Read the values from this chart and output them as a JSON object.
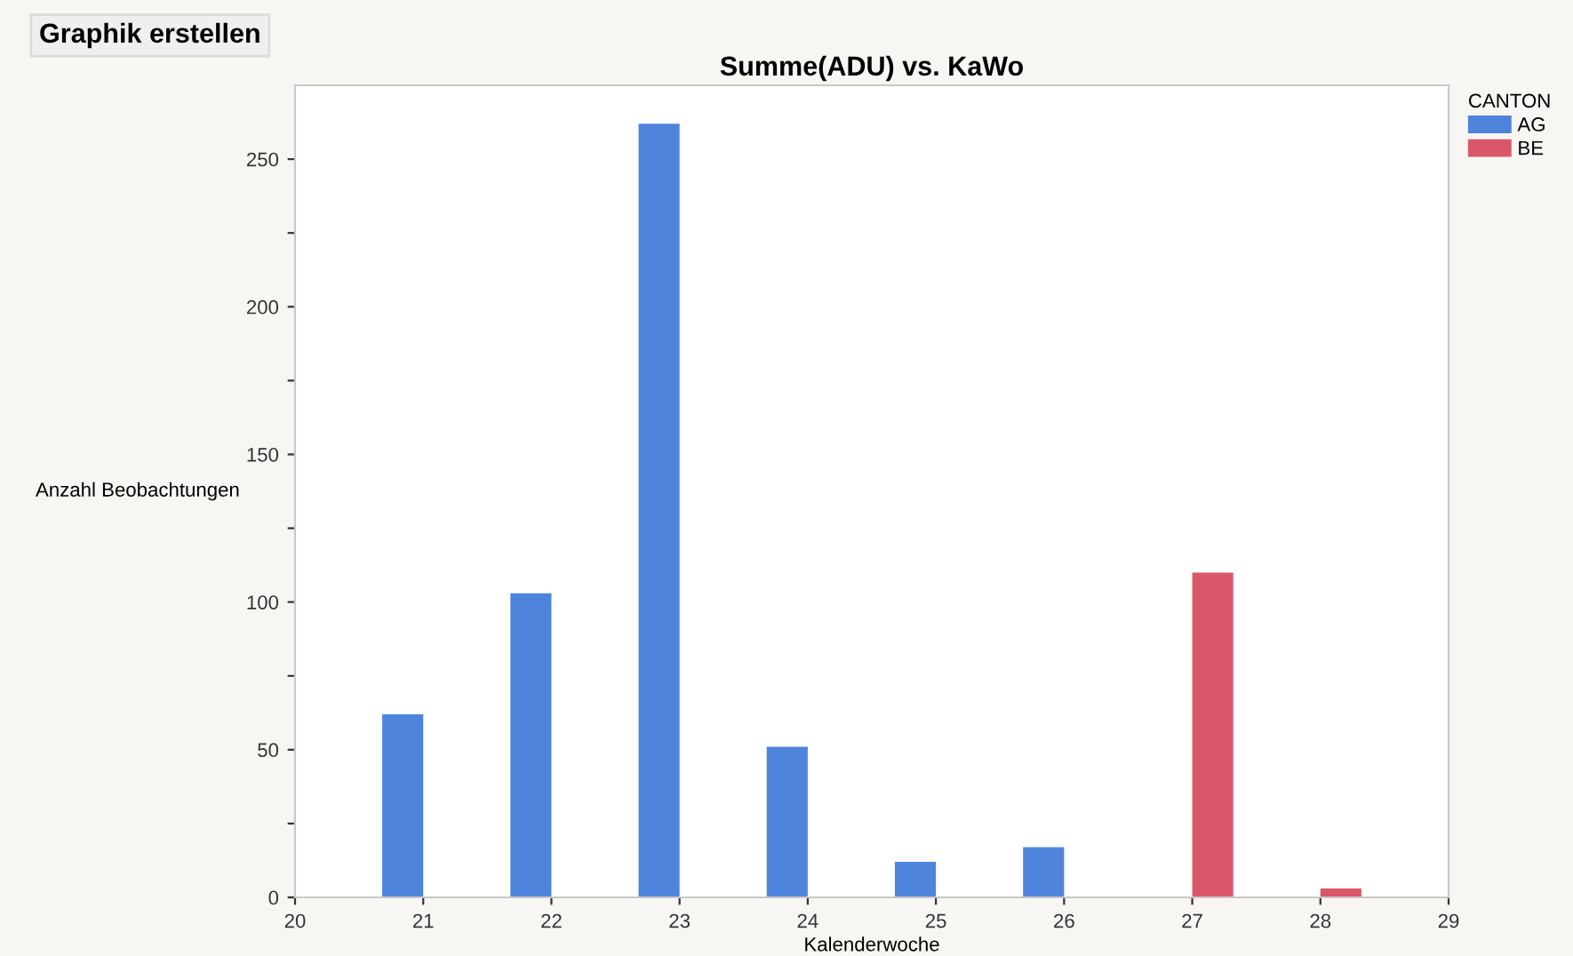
{
  "chart_data": {
    "type": "bar",
    "title": "Summe(ADU) vs. KaWo",
    "xlabel": "Kalenderwoche",
    "ylabel": "Anzahl Beobachtungen",
    "legend_title": "CANTON",
    "annotations": [
      "Graphik erstellen"
    ],
    "x": [
      21,
      22,
      23,
      24,
      25,
      26,
      27,
      28
    ],
    "series": [
      {
        "name": "AG",
        "color": "#4f84dc",
        "values": [
          62,
          103,
          262,
          51,
          12,
          17,
          null,
          null
        ]
      },
      {
        "name": "BE",
        "color": "#dc5669",
        "values": [
          null,
          null,
          null,
          null,
          null,
          null,
          110,
          3
        ]
      }
    ],
    "xlim": [
      20,
      29
    ],
    "xticks": [
      20,
      21,
      22,
      23,
      24,
      25,
      26,
      27,
      28,
      29
    ],
    "ylim": [
      0,
      275
    ],
    "yticks": [
      0,
      {
        "value": 25,
        "label": null
      },
      50,
      {
        "value": 75,
        "label": null
      },
      100,
      {
        "value": 125,
        "label": null
      },
      150,
      {
        "value": 175,
        "label": null
      },
      200,
      {
        "value": 225,
        "label": null
      },
      250
    ],
    "grid": false,
    "legend": "top right"
  }
}
